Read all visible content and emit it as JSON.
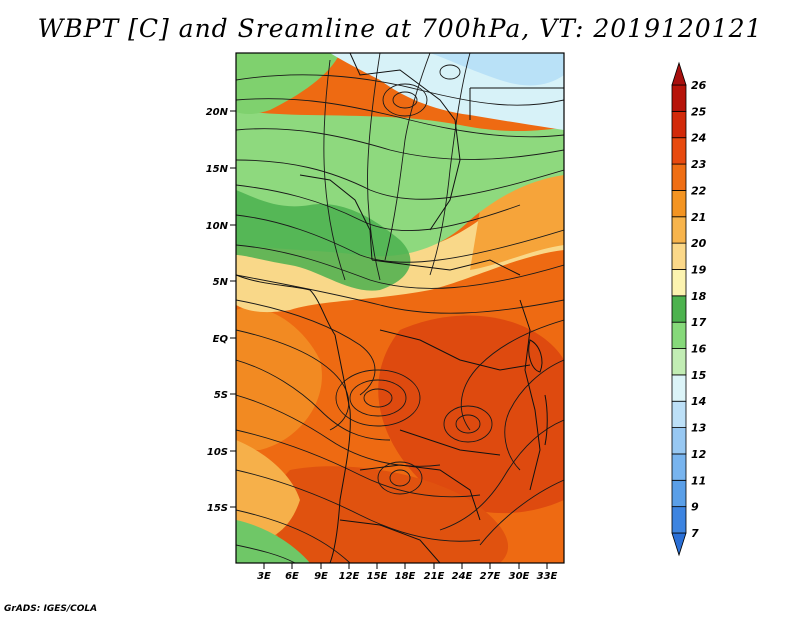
{
  "title": "WBPT [C] and Sreamline at 700hPa, VT: 2019120121",
  "footer": "GrADS: IGES/COLA",
  "map": {
    "lat_labels": [
      "20N",
      "15N",
      "10N",
      "5N",
      "EQ",
      "5S",
      "10S",
      "15S"
    ],
    "lon_labels": [
      "3E",
      "6E",
      "9E",
      "12E",
      "15E",
      "18E",
      "21E",
      "24E",
      "27E",
      "30E",
      "33E"
    ],
    "colors": {
      "warm_dark": "#d9480f",
      "warm": "#f0660a",
      "orange": "#f59a2c",
      "light_orange": "#f7c35a",
      "yellow": "#fbe9a2",
      "green_dark": "#44b04a",
      "green": "#7ed36c",
      "green_light": "#b6e6a6",
      "cyan_light": "#d7f2f8",
      "blue_light": "#bfe4f8"
    }
  },
  "colorbar": {
    "labels": [
      "7",
      "9",
      "11",
      "12",
      "13",
      "14",
      "15",
      "16",
      "17",
      "18",
      "19",
      "20",
      "21",
      "22",
      "23",
      "24",
      "25",
      "26"
    ],
    "colors": [
      "#2a6fd6",
      "#3d84e0",
      "#5a9fe8",
      "#78b4ee",
      "#98c8f2",
      "#bde0f7",
      "#dcf4f8",
      "#c2edb4",
      "#86d97a",
      "#4cb24e",
      "#fcf3b0",
      "#fbd889",
      "#f7b44c",
      "#f39422",
      "#ef6e14",
      "#e84a0f",
      "#d22a0a",
      "#b7140a",
      "#a8100e"
    ]
  }
}
